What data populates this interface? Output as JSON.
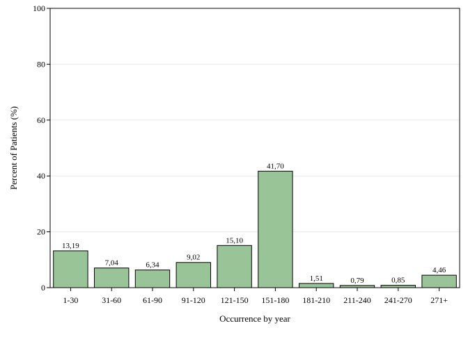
{
  "chart_data": {
    "type": "bar",
    "categories": [
      "1-30",
      "31-60",
      "61-90",
      "91-120",
      "121-150",
      "151-180",
      "181-210",
      "211-240",
      "241-270",
      "271+"
    ],
    "values": [
      13.19,
      7.04,
      6.34,
      9.02,
      15.1,
      41.7,
      1.51,
      0.79,
      0.85,
      4.46
    ],
    "data_labels": [
      "13,19",
      "7,04",
      "6,34",
      "9,02",
      "15,10",
      "41,70",
      "1,51",
      "0,79",
      "0,85",
      "4,46"
    ],
    "xlabel": "Occurrence by year",
    "ylabel": "Percent of Patients (%)",
    "ylim": [
      0,
      100
    ],
    "yticks": [
      0,
      20,
      40,
      60,
      80,
      100
    ],
    "grid": true,
    "bar_color": "#98c498",
    "bar_edge_color": "#000000"
  }
}
